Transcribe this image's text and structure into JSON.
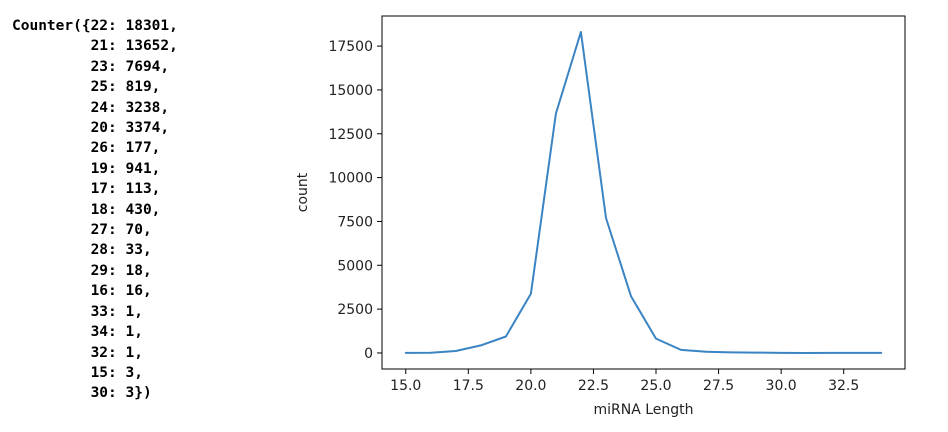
{
  "counter_output": {
    "head": "Counter({",
    "tail": "})",
    "entries": [
      {
        "key": 22,
        "value": 18301
      },
      {
        "key": 21,
        "value": 13652
      },
      {
        "key": 23,
        "value": 7694
      },
      {
        "key": 25,
        "value": 819
      },
      {
        "key": 24,
        "value": 3238
      },
      {
        "key": 20,
        "value": 3374
      },
      {
        "key": 26,
        "value": 177
      },
      {
        "key": 19,
        "value": 941
      },
      {
        "key": 17,
        "value": 113
      },
      {
        "key": 18,
        "value": 430
      },
      {
        "key": 27,
        "value": 70
      },
      {
        "key": 28,
        "value": 33
      },
      {
        "key": 29,
        "value": 18
      },
      {
        "key": 16,
        "value": 16
      },
      {
        "key": 33,
        "value": 1
      },
      {
        "key": 34,
        "value": 1
      },
      {
        "key": 32,
        "value": 1
      },
      {
        "key": 15,
        "value": 3
      },
      {
        "key": 30,
        "value": 3
      }
    ]
  },
  "chart_data": {
    "type": "line",
    "title": "",
    "xlabel": "miRNA Length",
    "ylabel": "count",
    "x": [
      15,
      16,
      17,
      18,
      19,
      20,
      21,
      22,
      23,
      24,
      25,
      26,
      27,
      28,
      29,
      30,
      31,
      32,
      33,
      34
    ],
    "series": [
      {
        "values": [
          3,
          16,
          113,
          430,
          941,
          3374,
          13652,
          18301,
          7694,
          3238,
          819,
          177,
          70,
          33,
          18,
          3,
          0,
          1,
          1,
          1
        ]
      }
    ],
    "xlim": [
      14.05,
      34.95
    ],
    "ylim": [
      -915,
      19216
    ],
    "xticks": [
      15.0,
      17.5,
      20.0,
      22.5,
      25.0,
      27.5,
      30.0,
      32.5
    ],
    "xtick_labels": [
      "15.0",
      "17.5",
      "20.0",
      "22.5",
      "25.0",
      "27.5",
      "30.0",
      "32.5"
    ],
    "yticks": [
      0,
      2500,
      5000,
      7500,
      10000,
      12500,
      15000,
      17500
    ],
    "ytick_labels": [
      "0",
      "2500",
      "5000",
      "7500",
      "10000",
      "12500",
      "15000",
      "17500"
    ],
    "grid": false,
    "legend": "none",
    "line_color": "#3a84c4"
  }
}
